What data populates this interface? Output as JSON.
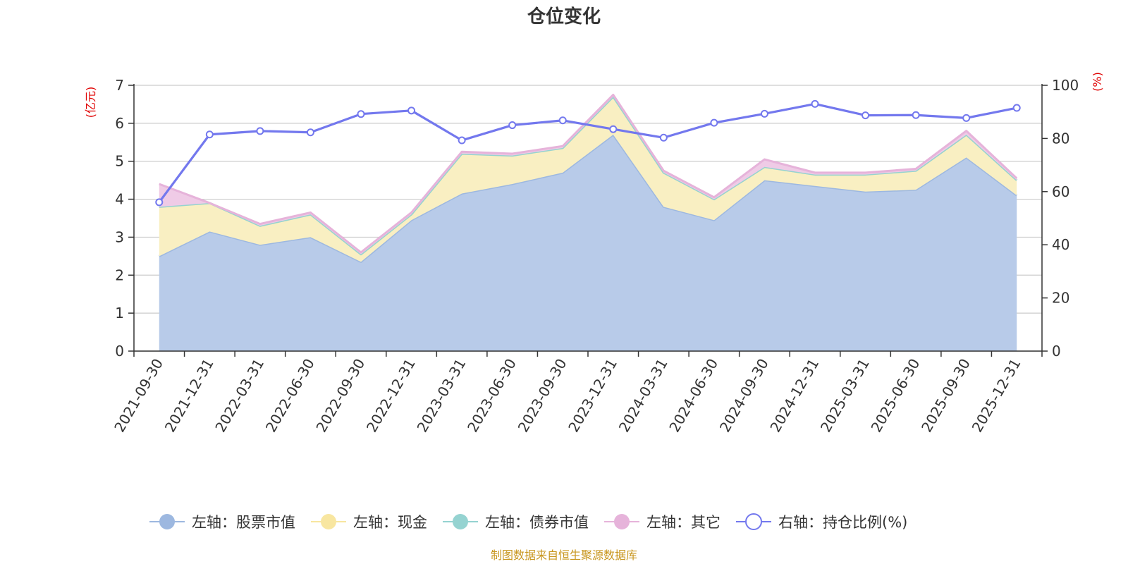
{
  "chart_data": {
    "type": "area",
    "title": "仓位变化",
    "source": "制图数据来自恒生聚源数据库",
    "left_axis": {
      "unit": "(亿元)",
      "ylim": [
        0,
        7
      ],
      "ticks": [
        "0",
        "1",
        "2",
        "3",
        "4",
        "5",
        "6",
        "7"
      ]
    },
    "right_axis": {
      "unit": "(%)",
      "ylim": [
        0,
        100
      ],
      "ticks": [
        "0",
        "20",
        "40",
        "60",
        "80",
        "100"
      ]
    },
    "categories": [
      "2021-09-30",
      "2021-12-31",
      "2022-03-31",
      "2022-06-30",
      "2022-09-30",
      "2022-12-31",
      "2023-03-31",
      "2023-06-30",
      "2023-09-30",
      "2023-12-31",
      "2024-03-31",
      "2024-06-30",
      "2024-09-30",
      "2024-12-31",
      "2025-03-31",
      "2025-06-30",
      "2025-09-30",
      "2025-12-31"
    ],
    "series": [
      {
        "name": "左轴：股票市值",
        "axis": "left",
        "color": "#9db8e0",
        "fill": "#b8cbe9",
        "values": [
          2.5,
          3.15,
          2.8,
          3.0,
          2.35,
          3.45,
          4.15,
          4.4,
          4.7,
          5.7,
          3.8,
          3.45,
          4.5,
          4.35,
          4.2,
          4.25,
          5.1,
          4.1
        ]
      },
      {
        "name": "左轴：现金",
        "axis": "left",
        "color": "#f8e6a0",
        "fill": "#f9efc2",
        "values": [
          1.3,
          0.75,
          0.5,
          0.6,
          0.2,
          0.15,
          1.05,
          0.75,
          0.65,
          1.0,
          0.9,
          0.55,
          0.35,
          0.3,
          0.45,
          0.5,
          0.6,
          0.4
        ]
      },
      {
        "name": "左轴：债券市值",
        "axis": "left",
        "color": "#95d3d1",
        "fill": "#b9e3e2",
        "values": [
          0,
          0,
          0,
          0,
          0,
          0,
          0,
          0,
          0,
          0,
          0,
          0,
          0,
          0,
          0,
          0,
          0,
          0
        ]
      },
      {
        "name": "左轴：其它",
        "axis": "left",
        "color": "#e6b3da",
        "fill": "#efcbe6",
        "values": [
          0.6,
          0.0,
          0.05,
          0.05,
          0.05,
          0.05,
          0.05,
          0.05,
          0.05,
          0.05,
          0.05,
          0.05,
          0.2,
          0.05,
          0.05,
          0.05,
          0.1,
          0.05
        ]
      },
      {
        "name": "右轴：持仓比例(%)",
        "axis": "right",
        "color": "#7378ee",
        "values": [
          56.0,
          81.5,
          82.8,
          82.3,
          89.2,
          90.5,
          79.3,
          85.0,
          86.8,
          83.5,
          80.3,
          85.9,
          89.3,
          93.0,
          88.7,
          88.8,
          87.7,
          91.5
        ]
      }
    ],
    "legend_position": "bottom",
    "grid": true
  }
}
